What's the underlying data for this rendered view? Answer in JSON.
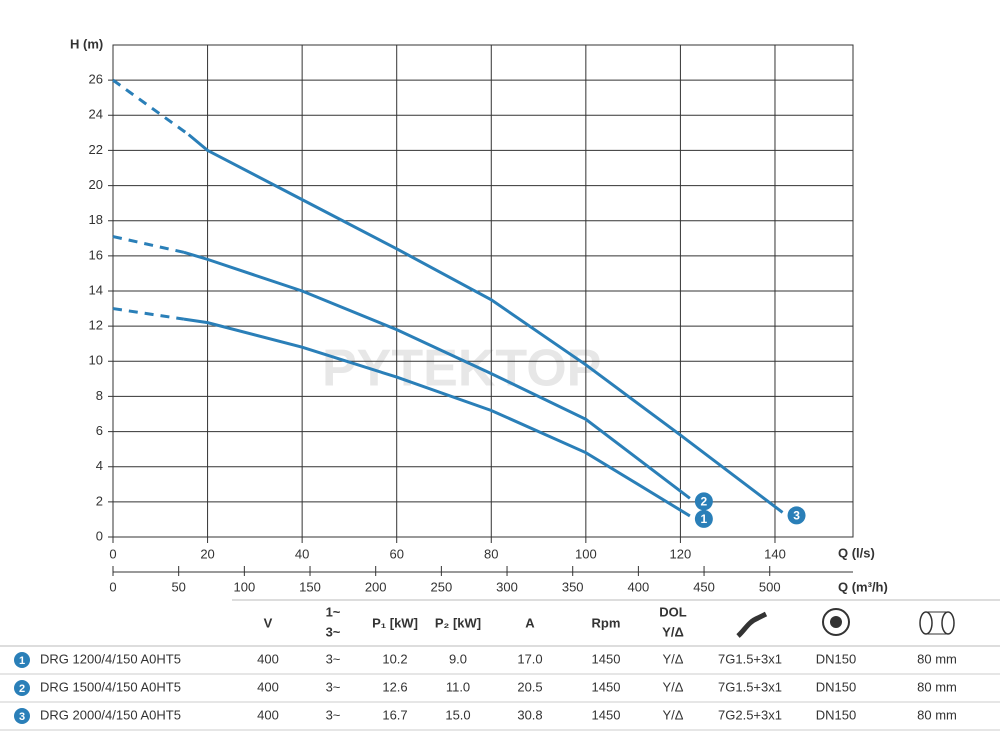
{
  "chart_data": {
    "type": "line",
    "y_label": "H (m)",
    "x_label": "Q (l/s)",
    "x2_label": "Q (m³/h)",
    "watermark": "PYTEKTOP",
    "xlim": [
      0,
      156.5
    ],
    "xticks": [
      0,
      20,
      40,
      60,
      80,
      100,
      120,
      140
    ],
    "x2lim": [
      0,
      563.4
    ],
    "x2ticks": [
      0,
      50,
      100,
      150,
      200,
      250,
      300,
      350,
      400,
      450,
      500
    ],
    "ylim": [
      0,
      28
    ],
    "yticks": [
      0,
      2,
      4,
      6,
      8,
      10,
      12,
      14,
      16,
      18,
      20,
      22,
      24,
      26
    ],
    "grid": true,
    "series": [
      {
        "name": "1",
        "color": "#2a7fb8",
        "x": [
          0,
          15,
          20,
          40,
          60,
          80,
          100,
          122
        ],
        "values": [
          13.0,
          12.4,
          12.2,
          10.8,
          9.1,
          7.2,
          4.8,
          1.2
        ]
      },
      {
        "name": "2",
        "color": "#2a7fb8",
        "x": [
          0,
          15,
          20,
          40,
          60,
          80,
          100,
          122
        ],
        "values": [
          17.1,
          16.2,
          15.8,
          14.0,
          11.8,
          9.3,
          6.7,
          2.2
        ]
      },
      {
        "name": "3",
        "color": "#2a7fb8",
        "x": [
          0,
          16,
          20,
          40,
          60,
          80,
          100,
          120,
          141.6
        ],
        "values": [
          26.0,
          22.9,
          22.0,
          19.2,
          16.4,
          13.5,
          9.8,
          5.8,
          1.4
        ]
      }
    ]
  },
  "table": {
    "header": [
      "V",
      "1~",
      "3~",
      "P₁ [kW]",
      "P₂ [kW]",
      "A",
      "Rpm",
      "DOL",
      "Y/Δ"
    ],
    "rows": [
      {
        "num": "1",
        "name": "DRG 1200/4/150 A0HT5",
        "cells": [
          "400",
          "3~",
          "10.2",
          "9.0",
          "17.0",
          "1450",
          "Y/Δ",
          "7G1.5+3x1",
          "DN150",
          "80 mm"
        ]
      },
      {
        "num": "2",
        "name": "DRG 1500/4/150 A0HT5",
        "cells": [
          "400",
          "3~",
          "12.6",
          "11.0",
          "20.5",
          "1450",
          "Y/Δ",
          "7G1.5+3x1",
          "DN150",
          "80 mm"
        ]
      },
      {
        "num": "3",
        "name": "DRG 2000/4/150 A0HT5",
        "cells": [
          "400",
          "3~",
          "16.7",
          "15.0",
          "30.8",
          "1450",
          "Y/Δ",
          "7G2.5+3x1",
          "DN150",
          "80 mm"
        ]
      }
    ]
  }
}
